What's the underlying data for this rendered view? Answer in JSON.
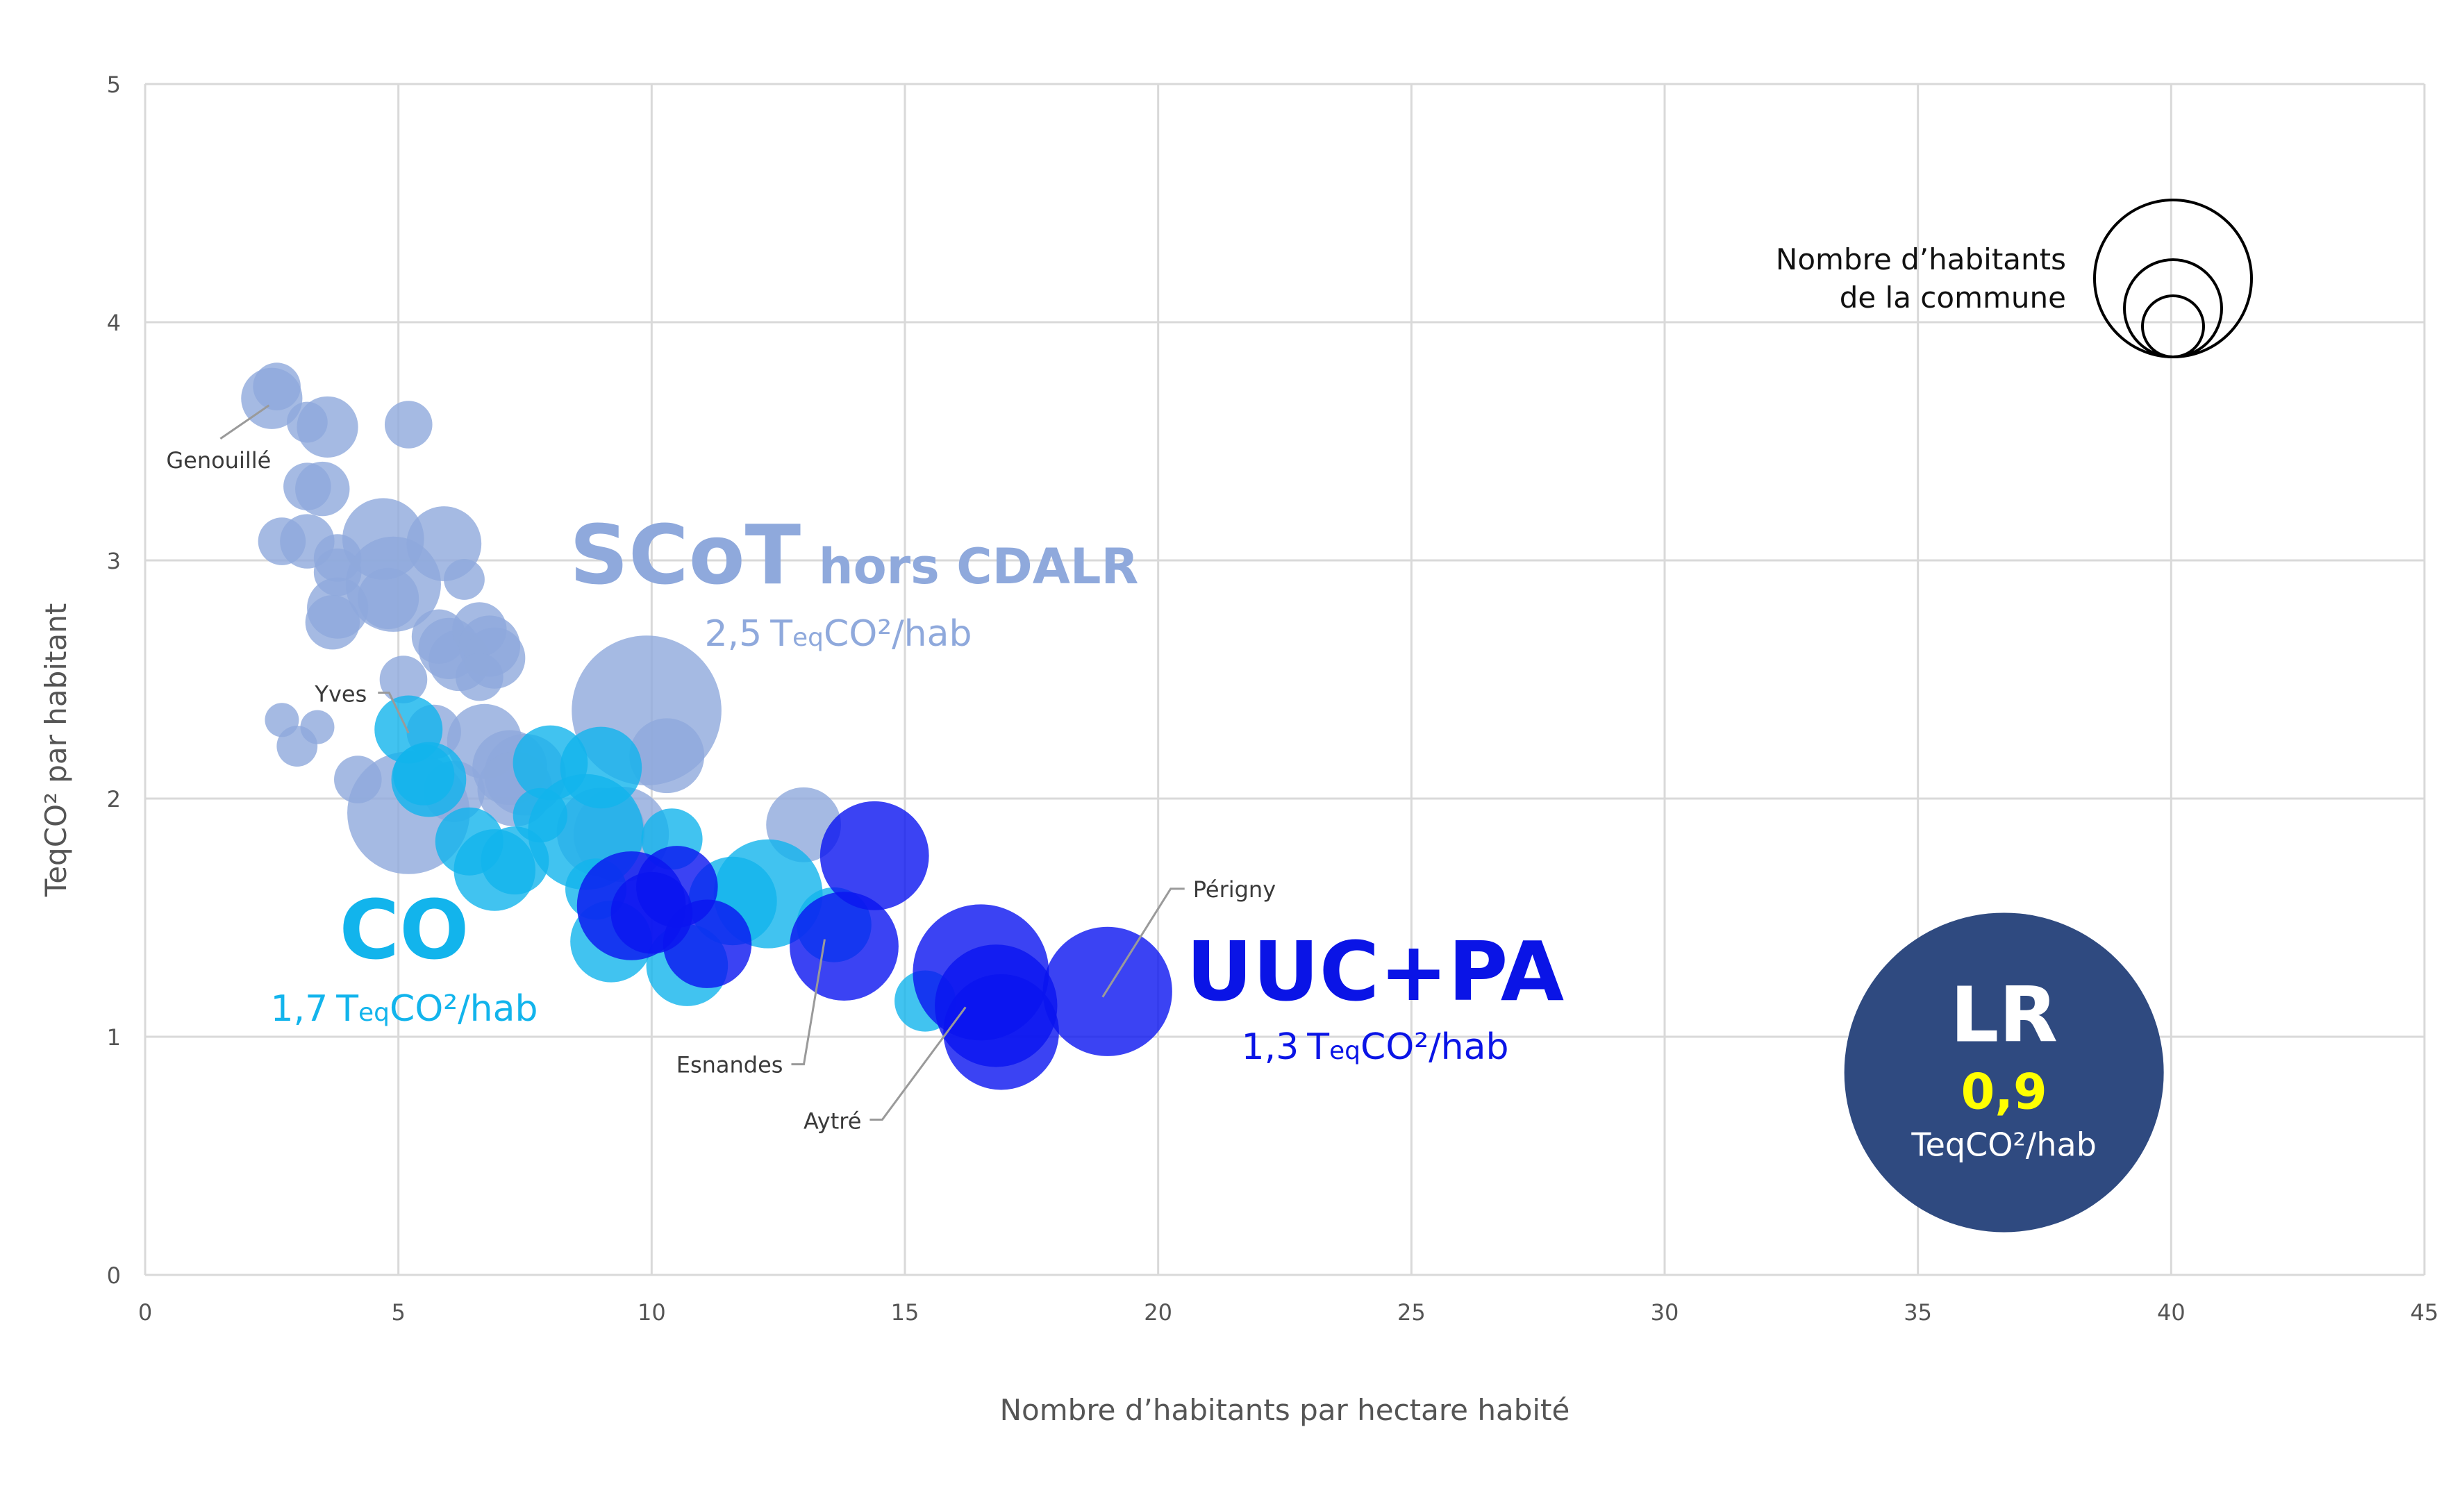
{
  "chart_data": {
    "type": "scatter",
    "subtype": "bubble",
    "title": "",
    "xlabel": "Nombre d’habitants par hectare habité",
    "ylabel": "TeqCO² par habitant",
    "xlim": [
      0,
      45
    ],
    "ylim": [
      0,
      5
    ],
    "xticks": [
      "0",
      "5",
      "10",
      "15",
      "20",
      "25",
      "30",
      "35",
      "40",
      "45"
    ],
    "yticks": [
      "0",
      "1",
      "2",
      "3",
      "4",
      "5"
    ],
    "grid": true,
    "size_legend": {
      "line1": "Nombre d’habitants",
      "line2": "de la commune",
      "placement": "top-right"
    },
    "colors": {
      "scot": "#8FA9DC",
      "co": "#12B4EC",
      "uuc": "#0A14F0",
      "lr": "#2F4A80",
      "lr_value": "#FFFF00",
      "grid": "#d9d9d9",
      "text": "#555555"
    },
    "groups": {
      "scot": {
        "name": "SCoT",
        "suffix": "hors CDALR",
        "avg_value": "2,5",
        "avg_unit_pre": "T",
        "avg_unit_sub": "eq",
        "avg_unit_post": "CO²/hab"
      },
      "co": {
        "name": "CO",
        "avg_value": "1,7",
        "avg_unit_pre": "T",
        "avg_unit_sub": "eq",
        "avg_unit_post": "CO²/hab"
      },
      "uuc": {
        "name": "UUC+PA",
        "avg_value": "1,3",
        "avg_unit_pre": "T",
        "avg_unit_sub": "eq",
        "avg_unit_post": "CO²/hab"
      },
      "lr": {
        "name": "LR",
        "value": "0,9",
        "unit": "TeqCO²/hab",
        "x": 36.7,
        "y": 0.85,
        "size": 100
      }
    },
    "series": [
      {
        "name": "SCoT hors CDALR",
        "group": "scot",
        "points": [
          {
            "x": 2.5,
            "y": 3.68,
            "size": 9
          },
          {
            "x": 2.6,
            "y": 3.73,
            "size": 7
          },
          {
            "x": 3.2,
            "y": 3.58,
            "size": 6
          },
          {
            "x": 3.6,
            "y": 3.56,
            "size": 9
          },
          {
            "x": 5.2,
            "y": 3.57,
            "size": 7
          },
          {
            "x": 3.2,
            "y": 3.31,
            "size": 7
          },
          {
            "x": 3.5,
            "y": 3.3,
            "size": 8
          },
          {
            "x": 2.7,
            "y": 3.08,
            "size": 7
          },
          {
            "x": 3.2,
            "y": 3.08,
            "size": 8
          },
          {
            "x": 3.8,
            "y": 3.01,
            "size": 7
          },
          {
            "x": 3.8,
            "y": 2.95,
            "size": 7
          },
          {
            "x": 4.7,
            "y": 3.09,
            "size": 12
          },
          {
            "x": 5.9,
            "y": 3.07,
            "size": 11
          },
          {
            "x": 4.9,
            "y": 2.9,
            "size": 14
          },
          {
            "x": 4.8,
            "y": 2.84,
            "size": 9
          },
          {
            "x": 3.8,
            "y": 2.8,
            "size": 9
          },
          {
            "x": 3.7,
            "y": 2.74,
            "size": 8
          },
          {
            "x": 6.3,
            "y": 2.92,
            "size": 6
          },
          {
            "x": 5.8,
            "y": 2.68,
            "size": 8
          },
          {
            "x": 6.0,
            "y": 2.63,
            "size": 9
          },
          {
            "x": 6.2,
            "y": 2.58,
            "size": 9
          },
          {
            "x": 6.6,
            "y": 2.71,
            "size": 8
          },
          {
            "x": 6.8,
            "y": 2.64,
            "size": 9
          },
          {
            "x": 6.9,
            "y": 2.59,
            "size": 9
          },
          {
            "x": 6.6,
            "y": 2.51,
            "size": 7
          },
          {
            "x": 5.1,
            "y": 2.5,
            "size": 7
          },
          {
            "x": 9.9,
            "y": 2.37,
            "size": 22
          },
          {
            "x": 10.3,
            "y": 2.18,
            "size": 11
          },
          {
            "x": 2.7,
            "y": 2.33,
            "size": 5
          },
          {
            "x": 3.4,
            "y": 2.3,
            "size": 5
          },
          {
            "x": 3.0,
            "y": 2.22,
            "size": 6
          },
          {
            "x": 5.7,
            "y": 2.28,
            "size": 8
          },
          {
            "x": 6.7,
            "y": 2.24,
            "size": 11
          },
          {
            "x": 7.2,
            "y": 2.13,
            "size": 11
          },
          {
            "x": 7.5,
            "y": 2.1,
            "size": 12
          },
          {
            "x": 7.3,
            "y": 2.04,
            "size": 11
          },
          {
            "x": 6.1,
            "y": 2.03,
            "size": 9
          },
          {
            "x": 4.2,
            "y": 2.08,
            "size": 7
          },
          {
            "x": 5.2,
            "y": 1.94,
            "size": 18
          },
          {
            "x": 9.0,
            "y": 1.86,
            "size": 13
          },
          {
            "x": 13.0,
            "y": 1.89,
            "size": 11
          },
          {
            "x": 9.4,
            "y": 1.85,
            "size": 14
          }
        ]
      },
      {
        "name": "CO",
        "group": "co",
        "points": [
          {
            "x": 5.2,
            "y": 2.29,
            "size": 10
          },
          {
            "x": 5.6,
            "y": 2.08,
            "size": 11
          },
          {
            "x": 5.5,
            "y": 2.1,
            "size": 9
          },
          {
            "x": 8.0,
            "y": 2.15,
            "size": 11
          },
          {
            "x": 9.0,
            "y": 2.13,
            "size": 12
          },
          {
            "x": 7.8,
            "y": 1.93,
            "size": 8
          },
          {
            "x": 8.7,
            "y": 1.86,
            "size": 17
          },
          {
            "x": 10.4,
            "y": 1.83,
            "size": 9
          },
          {
            "x": 6.4,
            "y": 1.82,
            "size": 10
          },
          {
            "x": 7.3,
            "y": 1.74,
            "size": 10
          },
          {
            "x": 6.9,
            "y": 1.7,
            "size": 12
          },
          {
            "x": 8.9,
            "y": 1.62,
            "size": 9
          },
          {
            "x": 11.6,
            "y": 1.57,
            "size": 13
          },
          {
            "x": 12.3,
            "y": 1.6,
            "size": 16
          },
          {
            "x": 13.6,
            "y": 1.47,
            "size": 11
          },
          {
            "x": 9.2,
            "y": 1.4,
            "size": 12
          },
          {
            "x": 10.7,
            "y": 1.3,
            "size": 12
          },
          {
            "x": 15.4,
            "y": 1.15,
            "size": 9
          }
        ]
      },
      {
        "name": "UUC+PA",
        "group": "uuc",
        "points": [
          {
            "x": 14.4,
            "y": 1.76,
            "size": 16
          },
          {
            "x": 9.6,
            "y": 1.55,
            "size": 16
          },
          {
            "x": 10.5,
            "y": 1.63,
            "size": 12
          },
          {
            "x": 10.0,
            "y": 1.52,
            "size": 12
          },
          {
            "x": 11.1,
            "y": 1.39,
            "size": 13
          },
          {
            "x": 13.8,
            "y": 1.38,
            "size": 16
          },
          {
            "x": 16.5,
            "y": 1.27,
            "size": 20
          },
          {
            "x": 16.8,
            "y": 1.13,
            "size": 18
          },
          {
            "x": 16.9,
            "y": 1.02,
            "size": 17
          },
          {
            "x": 19.0,
            "y": 1.19,
            "size": 19
          }
        ]
      }
    ],
    "annotations": [
      {
        "label": "Genouillé",
        "x": 2.5,
        "y": 3.68
      },
      {
        "label": "Yves",
        "x": 5.2,
        "y": 2.29
      },
      {
        "label": "Esnandes",
        "x": 13.8,
        "y": 1.38
      },
      {
        "label": "Aytré",
        "x": 16.5,
        "y": 1.27
      },
      {
        "label": "Périgny",
        "x": 19.0,
        "y": 1.19
      }
    ]
  }
}
